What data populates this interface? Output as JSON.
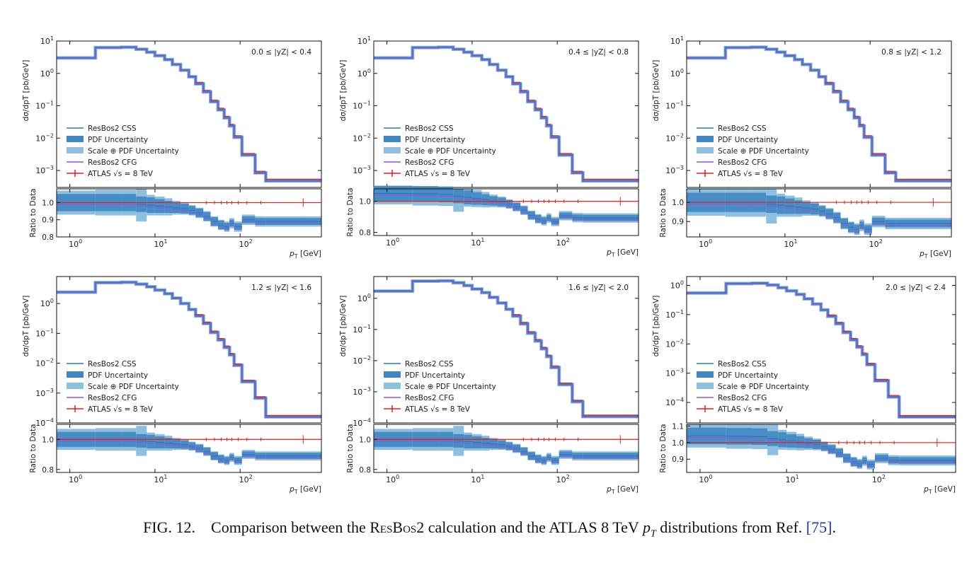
{
  "caption": {
    "fig_label": "FIG. 12.",
    "text_before": "Comparison between the",
    "smallcaps": "ResBos2",
    "text_middle": "calculation and the ATLAS 8 TeV",
    "math_main": "p",
    "math_sub": "T",
    "text_after": "distributions from Ref.",
    "ref": "[75]",
    "end": "."
  },
  "axes_text": {
    "ylabel_top": "[pb/GeV]",
    "ylabel_frac_num": "dσ",
    "ylabel_frac_den": "dp",
    "ylabel_frac_den_sub": "T",
    "ylabel_ratio": "Ratio to Data",
    "xlabel_main": "p",
    "xlabel_sub": "T",
    "xlabel_unit": "[GeV]"
  },
  "legend": {
    "css": "ResBos2 CSS",
    "pdf": "PDF Uncertainty",
    "scale": "Scale ⊕ PDF Uncertainty",
    "cfg": "ResBos2 CFG",
    "atlas": "ATLAS √s = 8 TeV"
  },
  "colors": {
    "css": "#2a7ab9",
    "pdf_band": "#3f86c2",
    "scale_band": "#8fbfe0",
    "cfg": "#9455d9",
    "atlas": "#e0201b"
  },
  "chart_data": [
    {
      "type": "step-histogram-with-ratio",
      "title": "0.0 ≤ |yZ| < 0.4",
      "bin_edges": [
        0.7,
        2,
        4,
        6,
        8,
        10,
        13,
        16,
        20,
        25,
        30,
        37,
        45,
        55,
        65,
        75,
        85,
        105,
        150,
        200,
        900
      ],
      "ylim": [
        0.0003,
        10
      ],
      "yticks_exp": [
        1,
        0,
        -1,
        -2,
        -3
      ],
      "ratio_ylim": [
        0.8,
        1.08
      ],
      "ratio_ticks": [
        "1.0",
        "0.9",
        "0.8"
      ],
      "xticks_exp": [
        0,
        1,
        2
      ]
    },
    {
      "type": "step-histogram-with-ratio",
      "title": "0.4 ≤ |yZ| < 0.8",
      "bin_edges": [
        0.7,
        2,
        4,
        6,
        8,
        10,
        13,
        16,
        20,
        25,
        30,
        37,
        45,
        55,
        65,
        75,
        85,
        105,
        150,
        200,
        900
      ],
      "ylim": [
        0.0003,
        10
      ],
      "yticks_exp": [
        1,
        0,
        -1,
        -2,
        -3
      ],
      "ratio_ylim": [
        0.78,
        1.08
      ],
      "ratio_ticks": [
        "1.0",
        "0.8"
      ],
      "xticks_exp": [
        0,
        1,
        2
      ]
    },
    {
      "type": "step-histogram-with-ratio",
      "title": "0.8 ≤ |yZ| < 1.2",
      "bin_edges": [
        0.7,
        2,
        4,
        6,
        8,
        10,
        13,
        16,
        20,
        25,
        30,
        37,
        45,
        55,
        65,
        75,
        85,
        105,
        150,
        200,
        900
      ],
      "ylim": [
        0.0003,
        10
      ],
      "yticks_exp": [
        1,
        0,
        -1,
        -2,
        -3
      ],
      "ratio_ylim": [
        0.82,
        1.07
      ],
      "ratio_ticks": [
        "1.0",
        "0.9"
      ],
      "xticks_exp": [
        0,
        1,
        2
      ]
    },
    {
      "type": "step-histogram-with-ratio",
      "title": "1.2 ≤ |yZ| < 1.6",
      "bin_edges": [
        0.7,
        2,
        4,
        6,
        8,
        10,
        13,
        16,
        20,
        25,
        30,
        37,
        45,
        55,
        65,
        75,
        85,
        105,
        150,
        200,
        900
      ],
      "ylim": [
        0.0001,
        8
      ],
      "yticks_exp": [
        0,
        -1,
        -2,
        -3,
        -4
      ],
      "ratio_ylim": [
        0.78,
        1.1
      ],
      "ratio_ticks": [
        "1.0",
        "0.8"
      ],
      "xticks_exp": [
        0,
        1,
        2
      ]
    },
    {
      "type": "step-histogram-with-ratio",
      "title": "1.6 ≤ |yZ| < 2.0",
      "bin_edges": [
        0.7,
        2,
        4,
        6,
        8,
        10,
        13,
        16,
        20,
        25,
        30,
        37,
        45,
        55,
        65,
        75,
        85,
        105,
        150,
        200,
        900
      ],
      "ylim": [
        0.0001,
        5
      ],
      "yticks_exp": [
        0,
        -1,
        -2,
        -3,
        -4
      ],
      "ratio_ylim": [
        0.78,
        1.1
      ],
      "ratio_ticks": [
        "1.0",
        "0.8"
      ],
      "xticks_exp": [
        0,
        1,
        2
      ]
    },
    {
      "type": "step-histogram-with-ratio",
      "title": "2.0 ≤ |yZ| < 2.4",
      "bin_edges": [
        0.7,
        2,
        4,
        6,
        8,
        10,
        13,
        16,
        20,
        25,
        30,
        37,
        45,
        55,
        65,
        75,
        85,
        105,
        150,
        200,
        900
      ],
      "ylim": [
        2e-05,
        2
      ],
      "yticks_exp": [
        0,
        -1,
        -2,
        -3,
        -4
      ],
      "ratio_ylim": [
        0.82,
        1.11
      ],
      "ratio_ticks": [
        "1.1",
        "1.0",
        "0.9"
      ],
      "xticks_exp": [
        0,
        1,
        2
      ]
    }
  ]
}
